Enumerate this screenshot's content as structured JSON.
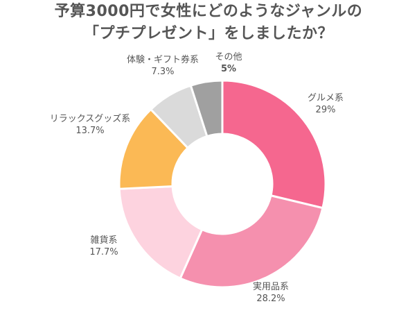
{
  "chart_data": {
    "type": "pie",
    "donut": true,
    "title_lines": [
      "予算3000円で女性にどのようなジャンルの",
      "「プチプレゼント」をしましたか？"
    ],
    "slices": [
      {
        "label": "グルメ系",
        "value": 29,
        "value_text": "29%",
        "color": "#f5678f"
      },
      {
        "label": "実用品系",
        "value": 28.2,
        "value_text": "28.2%",
        "color": "#f590ae"
      },
      {
        "label": "雑貨系",
        "value": 17.7,
        "value_text": "17.7%",
        "color": "#fdd3df"
      },
      {
        "label": "リラックスグッズ系",
        "value": 13.7,
        "value_text": "13.7%",
        "color": "#fbb955"
      },
      {
        "label": "体験・ギフト券系",
        "value": 7.3,
        "value_text": "7.3%",
        "color": "#dadada"
      },
      {
        "label": "その他",
        "value": 5,
        "value_text": "5%",
        "color": "#a0a0a0"
      }
    ]
  }
}
